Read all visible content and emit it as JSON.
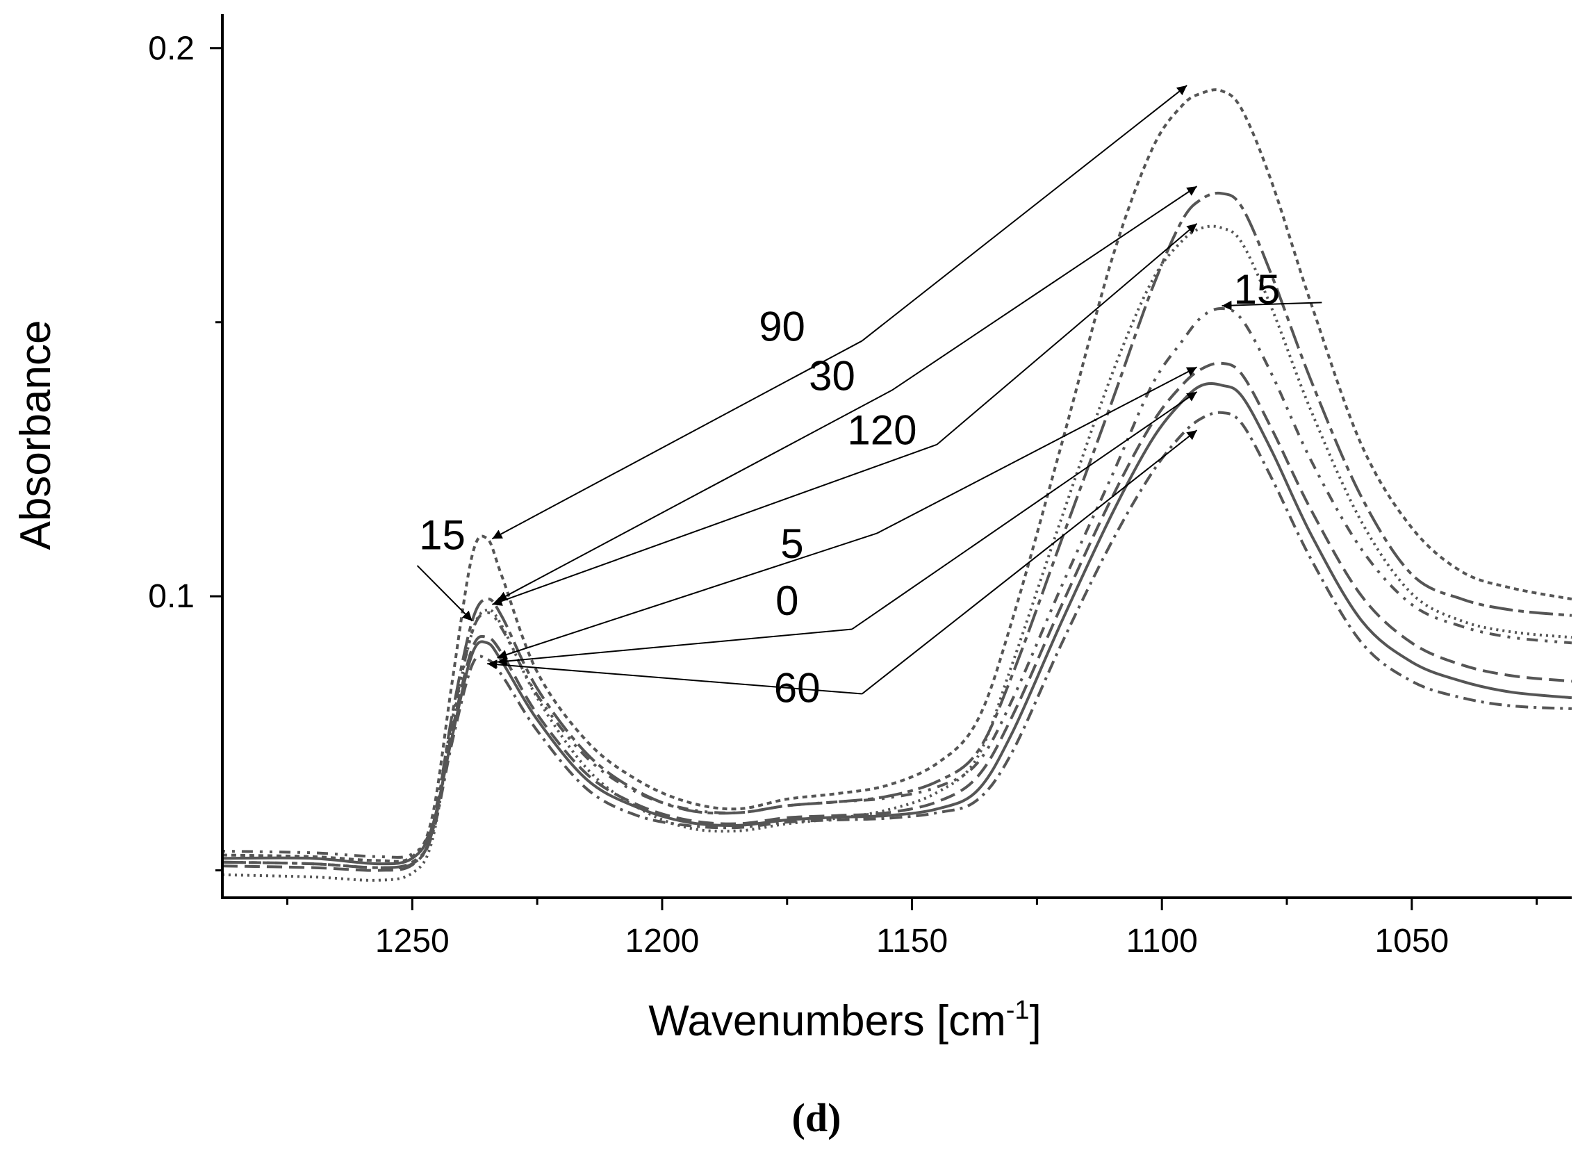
{
  "chart_data": {
    "type": "line",
    "title": "",
    "caption": "(d)",
    "xlabel_main": "Wavenumbers [cm",
    "xlabel_sup": "-1",
    "xlabel_end": "]",
    "ylabel": "Absorbance",
    "xlim": [
      1288,
      1018
    ],
    "ylim": [
      0.045,
      0.206
    ],
    "x_ticks": [
      1250,
      1200,
      1150,
      1100,
      1050
    ],
    "x_tick_labels": [
      "1250",
      "1200",
      "1150",
      "1100",
      "1050"
    ],
    "x_minor_ticks": [
      1275,
      1225,
      1175,
      1125,
      1075,
      1025
    ],
    "y_ticks": [
      0.2,
      0.1
    ],
    "y_tick_labels": [
      "0.2",
      "0.1"
    ],
    "y_minor_ticks": [
      0.15,
      0.05
    ],
    "series": [
      {
        "name": "0",
        "color": "#555555",
        "dash": "",
        "width": 4,
        "x": [
          1288,
          1270,
          1257,
          1250,
          1246,
          1242,
          1238,
          1235,
          1232,
          1225,
          1215,
          1205,
          1195,
          1185,
          1175,
          1165,
          1155,
          1145,
          1137,
          1130,
          1120,
          1110,
          1102,
          1096,
          1092,
          1088,
          1084,
          1078,
          1070,
          1060,
          1050,
          1040,
          1030,
          1018
        ],
        "y": [
          0.0522,
          0.0522,
          0.0512,
          0.0522,
          0.058,
          0.0745,
          0.0895,
          0.0915,
          0.088,
          0.0775,
          0.0665,
          0.0615,
          0.0588,
          0.0582,
          0.0592,
          0.0597,
          0.06,
          0.0612,
          0.0645,
          0.075,
          0.0955,
          0.115,
          0.1285,
          0.1355,
          0.1385,
          0.1385,
          0.1365,
          0.1265,
          0.111,
          0.0955,
          0.088,
          0.0845,
          0.0825,
          0.0815
        ]
      },
      {
        "name": "5",
        "color": "#555555",
        "dash": "22,10",
        "width": 4,
        "x": [
          1288,
          1270,
          1257,
          1250,
          1246,
          1242,
          1238,
          1235,
          1232,
          1225,
          1215,
          1205,
          1195,
          1185,
          1175,
          1165,
          1155,
          1145,
          1137,
          1130,
          1120,
          1110,
          1102,
          1096,
          1092,
          1088,
          1084,
          1078,
          1070,
          1060,
          1050,
          1040,
          1030,
          1018
        ],
        "y": [
          0.0508,
          0.0505,
          0.05,
          0.051,
          0.057,
          0.0755,
          0.0905,
          0.0925,
          0.0895,
          0.0785,
          0.0675,
          0.062,
          0.0592,
          0.0585,
          0.0596,
          0.06,
          0.0605,
          0.0625,
          0.067,
          0.078,
          0.0985,
          0.118,
          0.1315,
          0.1385,
          0.1415,
          0.1425,
          0.1405,
          0.1305,
          0.1155,
          0.1,
          0.0915,
          0.0875,
          0.0855,
          0.0845
        ]
      },
      {
        "name": "15",
        "color": "#555555",
        "dash": "4,10,4,10,16,10",
        "width": 4,
        "x": [
          1288,
          1270,
          1257,
          1250,
          1246,
          1242,
          1238,
          1235,
          1232,
          1225,
          1215,
          1205,
          1195,
          1185,
          1175,
          1165,
          1155,
          1145,
          1137,
          1130,
          1120,
          1110,
          1102,
          1096,
          1092,
          1088,
          1084,
          1078,
          1070,
          1060,
          1050,
          1040,
          1030,
          1018
        ],
        "y": [
          0.0535,
          0.0532,
          0.0525,
          0.053,
          0.0585,
          0.0775,
          0.0935,
          0.097,
          0.094,
          0.082,
          0.0705,
          0.0642,
          0.0612,
          0.0605,
          0.0618,
          0.0625,
          0.0632,
          0.0652,
          0.0695,
          0.081,
          0.102,
          0.122,
          0.1385,
          0.1465,
          0.151,
          0.1525,
          0.1505,
          0.1405,
          0.1245,
          0.1085,
          0.0985,
          0.0945,
          0.0925,
          0.0915
        ]
      },
      {
        "name": "30",
        "color": "#555555",
        "dash": "34,8,8,8",
        "width": 4,
        "x": [
          1288,
          1270,
          1257,
          1250,
          1246,
          1242,
          1238,
          1235,
          1232,
          1225,
          1215,
          1205,
          1195,
          1185,
          1175,
          1165,
          1155,
          1145,
          1137,
          1130,
          1120,
          1110,
          1102,
          1096,
          1092,
          1088,
          1084,
          1078,
          1070,
          1060,
          1050,
          1040,
          1030,
          1018
        ],
        "y": [
          0.0515,
          0.0512,
          0.0505,
          0.0515,
          0.0572,
          0.0785,
          0.0955,
          0.0995,
          0.0962,
          0.0832,
          0.0712,
          0.0645,
          0.061,
          0.0605,
          0.0618,
          0.0625,
          0.0635,
          0.0662,
          0.0715,
          0.0855,
          0.1105,
          0.1355,
          0.156,
          0.1685,
          0.1725,
          0.1735,
          0.171,
          0.1585,
          0.139,
          0.118,
          0.104,
          0.0995,
          0.0975,
          0.0965
        ]
      },
      {
        "name": "60",
        "color": "#555555",
        "dash": "18,8,4,8",
        "width": 4,
        "x": [
          1288,
          1270,
          1257,
          1250,
          1246,
          1242,
          1238,
          1235,
          1232,
          1225,
          1215,
          1205,
          1195,
          1185,
          1175,
          1165,
          1155,
          1145,
          1137,
          1130,
          1120,
          1110,
          1102,
          1096,
          1092,
          1088,
          1084,
          1078,
          1070,
          1060,
          1050,
          1040,
          1030,
          1018
        ],
        "y": [
          0.0515,
          0.0512,
          0.0505,
          0.0512,
          0.0565,
          0.0735,
          0.0875,
          0.0885,
          0.0855,
          0.0755,
          0.0648,
          0.06,
          0.0582,
          0.0578,
          0.0588,
          0.0592,
          0.0595,
          0.0605,
          0.0628,
          0.0715,
          0.0915,
          0.11,
          0.1225,
          0.1295,
          0.1325,
          0.1335,
          0.1315,
          0.1215,
          0.1065,
          0.0915,
          0.0845,
          0.0815,
          0.08,
          0.0795
        ]
      },
      {
        "name": "90",
        "color": "#555555",
        "dash": "7,6",
        "width": 4,
        "x": [
          1288,
          1270,
          1257,
          1250,
          1246,
          1242,
          1238,
          1235,
          1232,
          1225,
          1215,
          1205,
          1195,
          1185,
          1175,
          1165,
          1155,
          1145,
          1137,
          1130,
          1120,
          1110,
          1102,
          1096,
          1092,
          1088,
          1084,
          1078,
          1070,
          1060,
          1050,
          1040,
          1030,
          1018
        ],
        "y": [
          0.0528,
          0.0525,
          0.0518,
          0.0525,
          0.0598,
          0.0845,
          0.1075,
          0.1105,
          0.1035,
          0.0862,
          0.0735,
          0.0665,
          0.0625,
          0.0612,
          0.063,
          0.064,
          0.0655,
          0.0695,
          0.0772,
          0.0955,
          0.128,
          0.1615,
          0.1815,
          0.1895,
          0.1918,
          0.1922,
          0.1888,
          0.1755,
          0.153,
          0.1275,
          0.1125,
          0.1045,
          0.1015,
          0.0995
        ]
      },
      {
        "name": "120",
        "color": "#555555",
        "dash": "3,6",
        "width": 4,
        "x": [
          1288,
          1270,
          1257,
          1250,
          1246,
          1242,
          1238,
          1235,
          1232,
          1225,
          1215,
          1205,
          1195,
          1185,
          1175,
          1165,
          1155,
          1145,
          1137,
          1130,
          1120,
          1110,
          1102,
          1096,
          1092,
          1088,
          1084,
          1078,
          1070,
          1060,
          1050,
          1040,
          1030,
          1018
        ],
        "y": [
          0.0492,
          0.0488,
          0.0482,
          0.0495,
          0.0555,
          0.0765,
          0.0935,
          0.0975,
          0.0945,
          0.0815,
          0.0685,
          0.0615,
          0.0578,
          0.0572,
          0.0585,
          0.0595,
          0.061,
          0.0642,
          0.0705,
          0.0875,
          0.1145,
          0.1405,
          0.1575,
          0.1648,
          0.1672,
          0.1672,
          0.1645,
          0.1525,
          0.1335,
          0.1135,
          0.1005,
          0.0955,
          0.0935,
          0.0925
        ]
      }
    ],
    "annotations": [
      {
        "text": "90",
        "label_x": 1176,
        "label_y": 0.1466,
        "from_x": 1160,
        "from_y": 0.1466,
        "to_x": 1095,
        "to_y": 0.1932,
        "to2_x": 1234,
        "to2_y": 0.1105
      },
      {
        "text": "30",
        "label_x": 1166,
        "label_y": 0.1376,
        "from_x": 1154,
        "from_y": 0.1376,
        "to_x": 1093,
        "to_y": 0.1748,
        "to2_x": 1233,
        "to2_y": 0.0992
      },
      {
        "text": "120",
        "label_x": 1156,
        "label_y": 0.1277,
        "from_x": 1145,
        "from_y": 0.1277,
        "to_x": 1093,
        "to_y": 0.168,
        "to2_x": 1234,
        "to2_y": 0.0985
      },
      {
        "text": "15",
        "label_x": 1081,
        "label_y": 0.1534,
        "from_x": 1068,
        "from_y": 0.1536,
        "to_x": 1088,
        "to_y": 0.153
      },
      {
        "text": "15",
        "label_x": 1244,
        "label_y": 0.1086,
        "from_x": 1249,
        "from_y": 0.1056,
        "to_x": 1238,
        "to_y": 0.0955
      },
      {
        "text": "5",
        "label_x": 1174,
        "label_y": 0.107,
        "from_x": 1157,
        "from_y": 0.1115,
        "to_x": 1093,
        "to_y": 0.1418,
        "to2_x": 1233,
        "to2_y": 0.0888
      },
      {
        "text": "0",
        "label_x": 1175,
        "label_y": 0.0966,
        "from_x": 1162,
        "from_y": 0.094,
        "to_x": 1093,
        "to_y": 0.1373,
        "to2_x": 1233,
        "to2_y": 0.088
      },
      {
        "text": "60",
        "label_x": 1173,
        "label_y": 0.0807,
        "from_x": 1160,
        "from_y": 0.0822,
        "to_x": 1093,
        "to_y": 0.1303,
        "to2_x": 1235,
        "to2_y": 0.0877
      }
    ]
  }
}
